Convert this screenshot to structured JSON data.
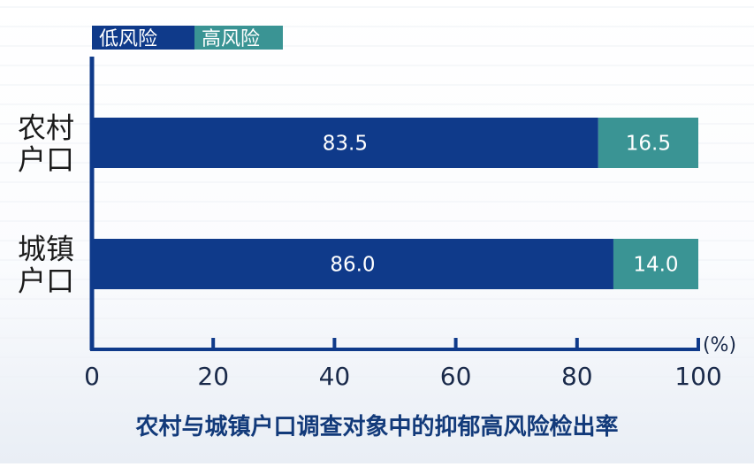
{
  "chart_data": {
    "type": "bar",
    "orientation": "horizontal",
    "stacked": true,
    "title": "农村与城镇户口调查对象中的抑郁高风险检出率",
    "categories": [
      "农村\n户口",
      "城镇\n户口"
    ],
    "series": [
      {
        "name": "低风险",
        "color": "#0f3a8a",
        "values": [
          83.5,
          86.0
        ],
        "labels": [
          "83.5",
          "86.0"
        ]
      },
      {
        "name": "高风险",
        "color": "#3a9494",
        "values": [
          16.5,
          14.0
        ],
        "labels": [
          "16.5",
          "14.0"
        ]
      }
    ],
    "x_ticks": [
      "0",
      "20",
      "40",
      "60",
      "80",
      "100"
    ],
    "xlim": [
      0,
      100
    ],
    "unit_label": "(%)",
    "legend_position": "top-left",
    "grid": true
  }
}
